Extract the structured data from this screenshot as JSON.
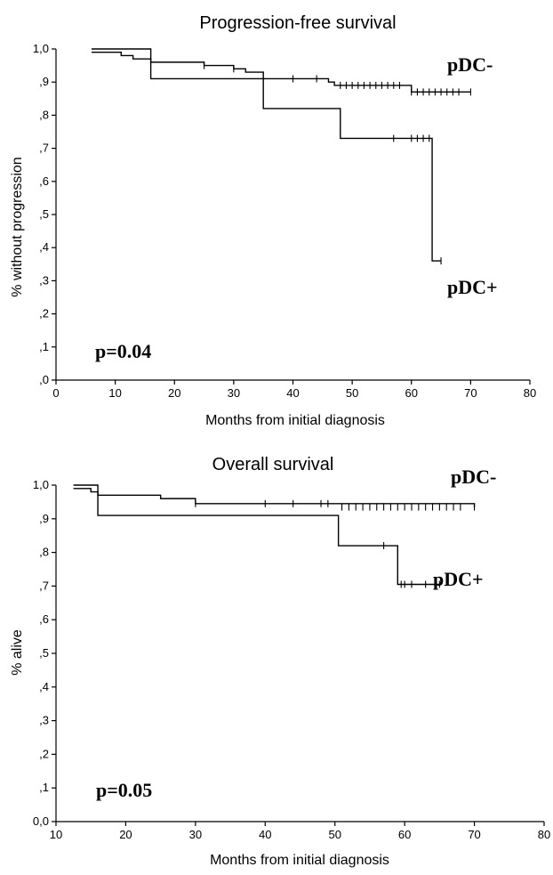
{
  "chart_data": [
    {
      "type": "line",
      "title": "Progression-free survival",
      "xlabel": "Months from initial diagnosis",
      "ylabel": "% without progression",
      "xlim": [
        0,
        80
      ],
      "ylim": [
        0,
        1
      ],
      "xticks": [
        "0",
        "10",
        "20",
        "30",
        "40",
        "50",
        "60",
        "70",
        "80"
      ],
      "xtick_values": [
        0,
        10,
        20,
        30,
        40,
        50,
        60,
        70,
        80
      ],
      "yticks": [
        ",0",
        ",1",
        ",2",
        ",3",
        ",4",
        ",5",
        ",6",
        ",7",
        ",8",
        ",9",
        "1,0"
      ],
      "ytick_values": [
        0,
        0.1,
        0.2,
        0.3,
        0.4,
        0.5,
        0.6,
        0.7,
        0.8,
        0.9,
        1.0
      ],
      "grid": false,
      "annotation": "p=0.04",
      "series": [
        {
          "name": "pDC-",
          "x": [
            6,
            11,
            13,
            16,
            25,
            30,
            32,
            35,
            46,
            47,
            60,
            70
          ],
          "y": [
            0.99,
            0.98,
            0.97,
            0.96,
            0.95,
            0.94,
            0.93,
            0.91,
            0.9,
            0.89,
            0.87,
            0.87
          ],
          "censored_x": [
            25,
            30,
            40,
            44,
            48,
            49,
            50,
            51,
            52,
            53,
            54,
            55,
            56,
            57,
            58,
            60,
            61,
            62,
            63,
            64,
            65,
            66,
            67,
            68,
            70
          ],
          "censored_y": [
            0.95,
            0.94,
            0.91,
            0.91,
            0.89,
            0.89,
            0.89,
            0.89,
            0.89,
            0.89,
            0.89,
            0.89,
            0.89,
            0.89,
            0.89,
            0.87,
            0.87,
            0.87,
            0.87,
            0.87,
            0.87,
            0.87,
            0.87,
            0.87,
            0.87
          ]
        },
        {
          "name": "pDC+",
          "x": [
            6,
            16,
            35,
            48,
            63.5,
            65
          ],
          "y": [
            1.0,
            0.91,
            0.82,
            0.73,
            0.36,
            0.36
          ],
          "censored_x": [
            57,
            60,
            61,
            62,
            63,
            65
          ],
          "censored_y": [
            0.73,
            0.73,
            0.73,
            0.73,
            0.73,
            0.36
          ]
        }
      ]
    },
    {
      "type": "line",
      "title": "Overall survival",
      "xlabel": "Months from initial diagnosis",
      "ylabel": "% alive",
      "xlim": [
        10,
        80
      ],
      "ylim": [
        0,
        1
      ],
      "xticks": [
        "10",
        "20",
        "30",
        "40",
        "50",
        "60",
        "70",
        "80"
      ],
      "xtick_values": [
        10,
        20,
        30,
        40,
        50,
        60,
        70,
        80
      ],
      "yticks": [
        "0,0",
        ",1",
        ",2",
        ",3",
        ",4",
        ",5",
        ",6",
        ",7",
        ",8",
        ",9",
        "1,0"
      ],
      "ytick_values": [
        0,
        0.1,
        0.2,
        0.3,
        0.4,
        0.5,
        0.6,
        0.7,
        0.8,
        0.9,
        1.0
      ],
      "grid": false,
      "annotation": "p=0.05",
      "series": [
        {
          "name": "pDC-",
          "x": [
            12.5,
            15,
            16,
            25,
            30,
            70
          ],
          "y": [
            0.99,
            0.98,
            0.97,
            0.96,
            0.945,
            0.935
          ],
          "censored_x": [
            30,
            40,
            44,
            48,
            49,
            51,
            52,
            53,
            54,
            55,
            56,
            57,
            58,
            59,
            60,
            61,
            62,
            63,
            64,
            65,
            66,
            67,
            68,
            70
          ],
          "censored_y": [
            0.945,
            0.945,
            0.945,
            0.945,
            0.945,
            0.935,
            0.935,
            0.935,
            0.935,
            0.935,
            0.935,
            0.935,
            0.935,
            0.935,
            0.935,
            0.935,
            0.935,
            0.935,
            0.935,
            0.935,
            0.935,
            0.935,
            0.935,
            0.935
          ]
        },
        {
          "name": "pDC+",
          "x": [
            12.5,
            16,
            50.5,
            59,
            65
          ],
          "y": [
            1.0,
            0.91,
            0.82,
            0.705,
            0.705
          ],
          "censored_x": [
            57,
            59.5,
            60,
            61,
            63,
            65
          ],
          "censored_y": [
            0.82,
            0.705,
            0.705,
            0.705,
            0.705,
            0.705
          ]
        }
      ]
    }
  ]
}
